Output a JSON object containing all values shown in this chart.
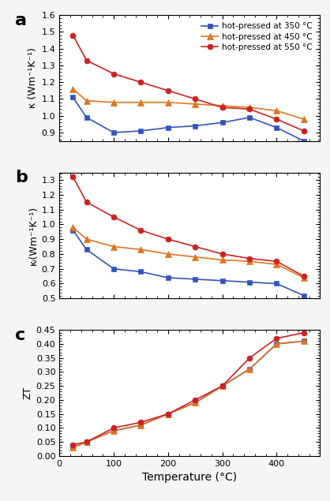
{
  "temp": [
    25,
    50,
    100,
    150,
    200,
    250,
    300,
    350,
    400,
    450
  ],
  "panel_a": {
    "blue_350": [
      1.11,
      0.99,
      0.9,
      0.91,
      0.93,
      0.94,
      0.96,
      0.99,
      0.93,
      0.85
    ],
    "orange_450": [
      1.16,
      1.09,
      1.08,
      1.08,
      1.08,
      1.07,
      1.06,
      1.05,
      1.03,
      0.98
    ],
    "red_550": [
      1.48,
      1.33,
      1.25,
      1.2,
      1.15,
      1.1,
      1.05,
      1.04,
      0.98,
      0.91
    ]
  },
  "panel_b": {
    "blue_350": [
      0.96,
      0.83,
      0.7,
      0.68,
      0.64,
      0.63,
      0.62,
      0.61,
      0.6,
      0.52
    ],
    "orange_450": [
      0.98,
      0.9,
      0.85,
      0.83,
      0.8,
      0.78,
      0.76,
      0.75,
      0.73,
      0.64
    ],
    "red_550": [
      1.32,
      1.15,
      1.05,
      0.96,
      0.9,
      0.85,
      0.8,
      0.77,
      0.75,
      0.65
    ]
  },
  "panel_c": {
    "blue_350": [
      0.03,
      0.05,
      0.09,
      0.11,
      0.15,
      0.19,
      0.25,
      0.31,
      0.4,
      0.41
    ],
    "orange_450": [
      0.03,
      0.05,
      0.09,
      0.11,
      0.15,
      0.19,
      0.25,
      0.31,
      0.4,
      0.41
    ],
    "red_550": [
      0.04,
      0.05,
      0.1,
      0.12,
      0.15,
      0.2,
      0.25,
      0.35,
      0.42,
      0.44
    ]
  },
  "colors": {
    "blue": "#3355bb",
    "orange": "#dd7722",
    "red": "#cc2222"
  },
  "legend_labels": [
    "hot-pressed at 350 °C",
    "hot-pressed at 450 °C",
    "hot-pressed at 550 °C"
  ],
  "xlabel": "Temperature (°C)",
  "ylabel_a": "κ (Wm⁻¹K⁻¹)",
  "ylabel_b": "κₗ(Wm⁻¹K⁻¹)",
  "ylabel_c": "ZT",
  "ylim_a": [
    0.85,
    1.6
  ],
  "ylim_b": [
    0.5,
    1.35
  ],
  "ylim_c": [
    0.0,
    0.45
  ],
  "xlim": [
    0,
    480
  ],
  "panel_labels": [
    "a",
    "b",
    "c"
  ],
  "background": "#f5f5f5",
  "yticks_a": [
    0.9,
    1.0,
    1.1,
    1.2,
    1.3,
    1.4,
    1.5,
    1.6
  ],
  "yticks_b": [
    0.5,
    0.6,
    0.7,
    0.8,
    0.9,
    1.0,
    1.1,
    1.2,
    1.3
  ],
  "yticks_c": [
    0.0,
    0.05,
    0.1,
    0.15,
    0.2,
    0.25,
    0.3,
    0.35,
    0.4,
    0.45
  ],
  "xticks": [
    0,
    100,
    200,
    300,
    400
  ]
}
